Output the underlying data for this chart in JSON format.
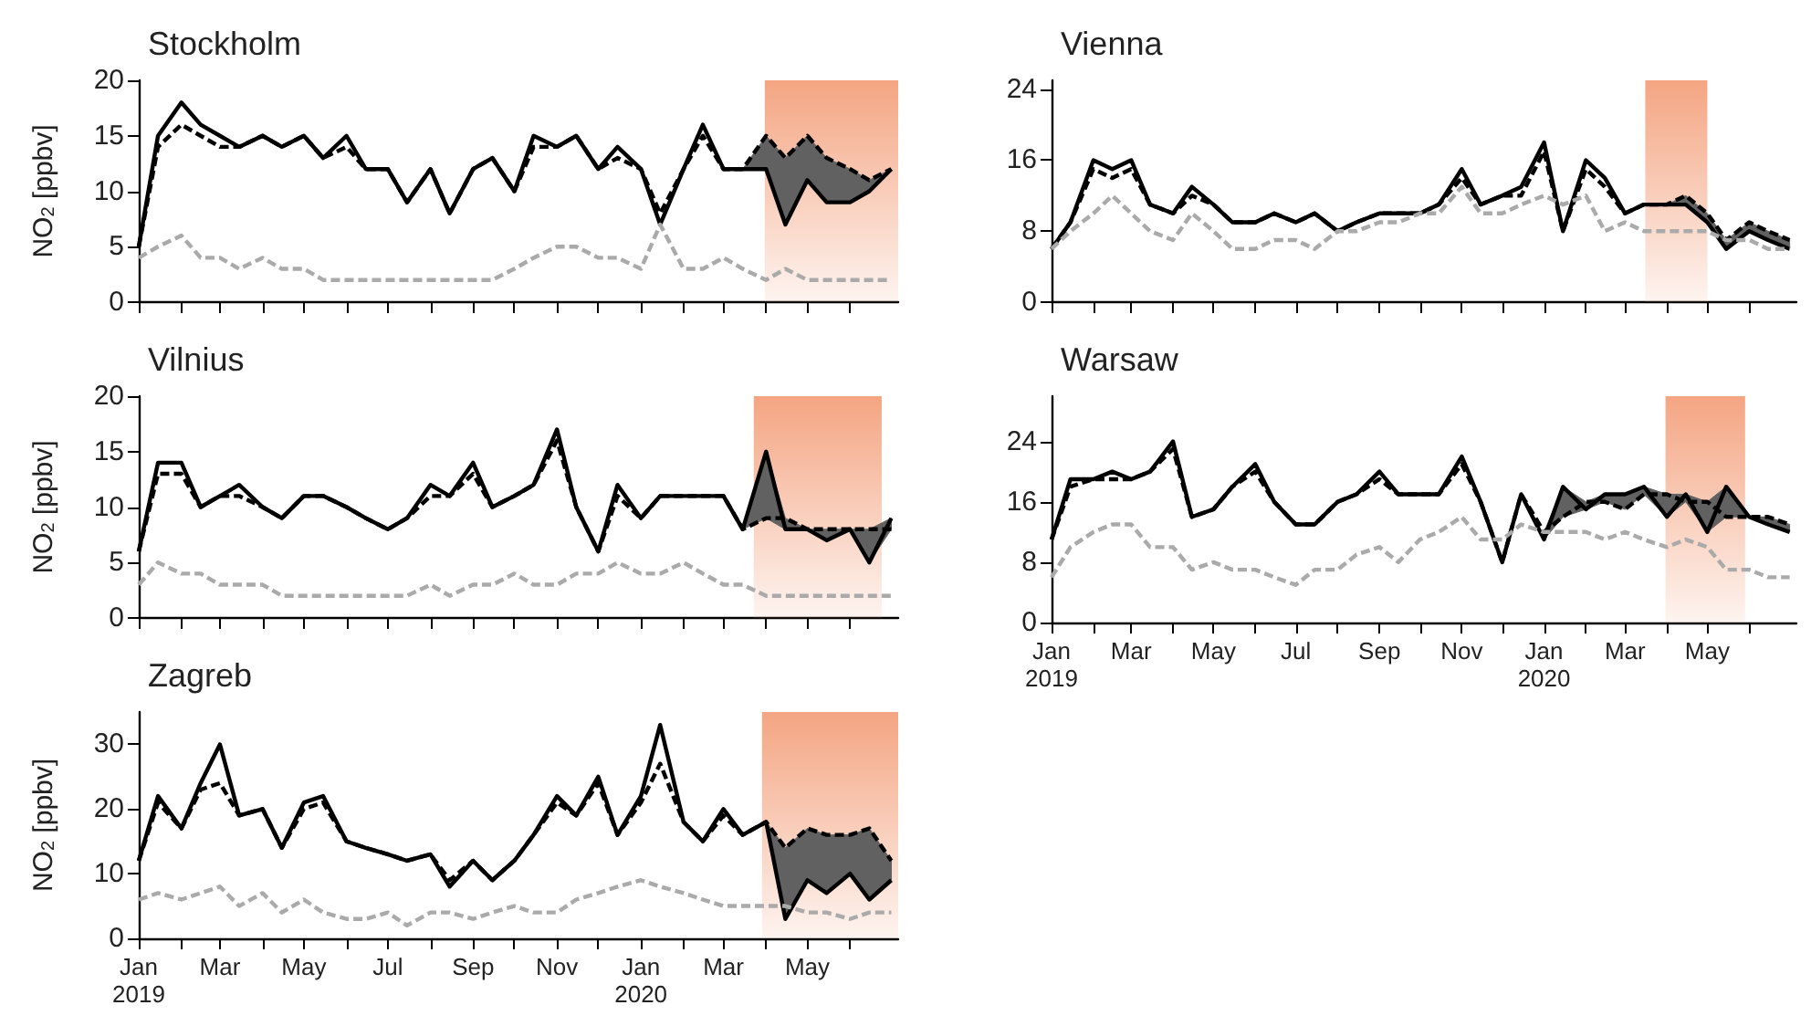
{
  "chart_data": [
    {
      "type": "line",
      "title": "Stockholm",
      "ylabel": "NO$_{2}$ [ppbv]",
      "ylim": [
        0,
        20
      ],
      "yticks": [
        0,
        5,
        10,
        15,
        20
      ],
      "tick_labels": "y",
      "x": [
        "2019-01-01",
        "2019-01-15",
        "2019-02-01",
        "2019-02-15",
        "2019-03-01",
        "2019-03-15",
        "2019-04-01",
        "2019-04-15",
        "2019-05-01",
        "2019-05-15",
        "2019-06-01",
        "2019-06-15",
        "2019-07-01",
        "2019-07-15",
        "2019-08-01",
        "2019-08-15",
        "2019-09-01",
        "2019-09-15",
        "2019-10-01",
        "2019-10-15",
        "2019-11-01",
        "2019-11-15",
        "2019-12-01",
        "2019-12-15",
        "2020-01-01",
        "2020-01-15",
        "2020-02-01",
        "2020-02-15",
        "2020-03-01",
        "2020-03-15",
        "2020-04-01",
        "2020-04-15",
        "2020-05-01",
        "2020-05-15",
        "2020-06-01",
        "2020-06-15",
        "2020-07-01"
      ],
      "xlim": [
        "2019-01-01",
        "2020-07-06"
      ],
      "xticks": [
        "2019-01-01",
        "2019-02-01",
        "2019-03-01",
        "2019-04-01",
        "2019-05-01",
        "2019-06-01",
        "2019-07-01",
        "2019-08-01",
        "2019-09-01",
        "2019-10-01",
        "2019-11-01",
        "2019-12-01",
        "2020-01-01",
        "2020-02-01",
        "2020-03-01",
        "2020-04-01",
        "2020-05-01",
        "2020-06-01"
      ],
      "bands": [
        {
          "axis": "x",
          "from": "2020-03-31",
          "to": "2020-07-06",
          "color": "#f4a582"
        }
      ],
      "series": [
        {
          "color": "#000000",
          "line_style": "dashed",
          "lower": [
            null,
            null,
            null,
            null,
            null,
            null,
            null,
            null,
            null,
            null,
            null,
            null,
            null,
            null,
            null,
            null,
            null,
            null,
            null,
            null,
            null,
            null,
            null,
            null,
            null,
            null,
            null,
            null,
            null,
            12,
            12,
            7,
            11,
            9,
            9,
            10,
            12
          ],
          "upper": [
            null,
            null,
            null,
            null,
            null,
            null,
            null,
            null,
            null,
            null,
            null,
            null,
            null,
            null,
            null,
            null,
            null,
            null,
            null,
            null,
            null,
            null,
            null,
            null,
            null,
            null,
            null,
            null,
            null,
            12,
            15,
            13,
            15,
            13,
            12,
            11,
            12
          ],
          "values": [
            5,
            14,
            16,
            15,
            14,
            14,
            15,
            14,
            15,
            13,
            14,
            12,
            12,
            9,
            12,
            8,
            12,
            13,
            10,
            14,
            14,
            15,
            12,
            13,
            12,
            8,
            12,
            15,
            12,
            12,
            15,
            13,
            15,
            13,
            12,
            11,
            12
          ]
        },
        {
          "color": "#000000",
          "line_style": "solid",
          "values": [
            5,
            15,
            18,
            16,
            15,
            14,
            15,
            14,
            15,
            13,
            15,
            12,
            12,
            9,
            12,
            8,
            12,
            13,
            10,
            15,
            14,
            15,
            12,
            14,
            12,
            7,
            12,
            16,
            12,
            12,
            12,
            7,
            11,
            9,
            9,
            10,
            12
          ]
        },
        {
          "color": "#aaaaaa",
          "line_style": "dashed",
          "values": [
            4,
            5,
            6,
            4,
            4,
            3,
            4,
            3,
            3,
            2,
            2,
            2,
            2,
            2,
            2,
            2,
            2,
            2,
            3,
            4,
            5,
            5,
            4,
            4,
            3,
            7,
            3,
            3,
            4,
            3,
            2,
            3,
            2,
            2,
            2,
            2,
            2
          ]
        }
      ]
    },
    {
      "type": "line",
      "title": "Vienna",
      "ylim": [
        0,
        25
      ],
      "yticks": [
        0,
        8,
        16,
        24
      ],
      "tick_labels": "y",
      "x": [
        "2019-01-01",
        "2019-01-15",
        "2019-02-01",
        "2019-02-15",
        "2019-03-01",
        "2019-03-15",
        "2019-04-01",
        "2019-04-15",
        "2019-05-01",
        "2019-05-15",
        "2019-06-01",
        "2019-06-15",
        "2019-07-01",
        "2019-07-15",
        "2019-08-01",
        "2019-08-15",
        "2019-09-01",
        "2019-09-15",
        "2019-10-01",
        "2019-10-15",
        "2019-11-01",
        "2019-11-15",
        "2019-12-01",
        "2019-12-15",
        "2020-01-01",
        "2020-01-15",
        "2020-02-01",
        "2020-02-15",
        "2020-03-01",
        "2020-03-15",
        "2020-04-01",
        "2020-04-15",
        "2020-05-01",
        "2020-05-15",
        "2020-06-01",
        "2020-06-15",
        "2020-07-01"
      ],
      "xlim": [
        "2019-01-01",
        "2020-07-06"
      ],
      "xticks": [
        "2019-01-01",
        "2019-02-01",
        "2019-03-01",
        "2019-04-01",
        "2019-05-01",
        "2019-06-01",
        "2019-07-01",
        "2019-08-01",
        "2019-09-01",
        "2019-10-01",
        "2019-11-01",
        "2019-12-01",
        "2020-01-01",
        "2020-02-01",
        "2020-03-01",
        "2020-04-01",
        "2020-05-01",
        "2020-06-01"
      ],
      "bands": [
        {
          "axis": "x",
          "from": "2020-03-16",
          "to": "2020-05-01",
          "color": "#f4a582"
        }
      ],
      "series": [
        {
          "color": "#000000",
          "line_style": "dashed",
          "lower": [
            null,
            null,
            null,
            null,
            null,
            null,
            null,
            null,
            null,
            null,
            null,
            null,
            null,
            null,
            null,
            null,
            null,
            null,
            null,
            null,
            null,
            null,
            null,
            null,
            null,
            null,
            null,
            null,
            null,
            11,
            11,
            11,
            9,
            6,
            8,
            7,
            6
          ],
          "upper": [
            null,
            null,
            null,
            null,
            null,
            null,
            null,
            null,
            null,
            null,
            null,
            null,
            null,
            null,
            null,
            null,
            null,
            null,
            null,
            null,
            null,
            null,
            null,
            null,
            null,
            null,
            null,
            null,
            null,
            11,
            11,
            12,
            10,
            7,
            9,
            8,
            7
          ],
          "values": [
            6,
            9,
            15,
            14,
            15,
            11,
            10,
            12,
            11,
            9,
            9,
            10,
            9,
            10,
            8,
            9,
            10,
            10,
            10,
            11,
            14,
            11,
            12,
            12,
            17,
            8,
            15,
            13,
            10,
            11,
            11,
            12,
            10,
            7,
            9,
            8,
            7
          ]
        },
        {
          "color": "#000000",
          "line_style": "solid",
          "values": [
            6,
            9,
            16,
            15,
            16,
            11,
            10,
            13,
            11,
            9,
            9,
            10,
            9,
            10,
            8,
            9,
            10,
            10,
            10,
            11,
            15,
            11,
            12,
            13,
            18,
            8,
            16,
            14,
            10,
            11,
            11,
            11,
            9,
            6,
            8,
            7,
            6
          ]
        },
        {
          "color": "#aaaaaa",
          "line_style": "dashed",
          "values": [
            6,
            8,
            10,
            12,
            10,
            8,
            7,
            10,
            8,
            6,
            6,
            7,
            7,
            6,
            8,
            8,
            9,
            9,
            10,
            10,
            13,
            10,
            10,
            11,
            12,
            11,
            12,
            8,
            9,
            8,
            8,
            8,
            8,
            7,
            7,
            6,
            6
          ]
        }
      ]
    },
    {
      "type": "line",
      "title": "Vilnius",
      "ylabel": "NO$_{2}$ [ppbv]",
      "ylim": [
        0,
        20
      ],
      "yticks": [
        0,
        5,
        10,
        15,
        20
      ],
      "tick_labels": "y",
      "x": [
        "2019-01-01",
        "2019-01-15",
        "2019-02-01",
        "2019-02-15",
        "2019-03-01",
        "2019-03-15",
        "2019-04-01",
        "2019-04-15",
        "2019-05-01",
        "2019-05-15",
        "2019-06-01",
        "2019-06-15",
        "2019-07-01",
        "2019-07-15",
        "2019-08-01",
        "2019-08-15",
        "2019-09-01",
        "2019-09-15",
        "2019-10-01",
        "2019-10-15",
        "2019-11-01",
        "2019-11-15",
        "2019-12-01",
        "2019-12-15",
        "2020-01-01",
        "2020-01-15",
        "2020-02-01",
        "2020-02-15",
        "2020-03-01",
        "2020-03-15",
        "2020-04-01",
        "2020-04-15",
        "2020-05-01",
        "2020-05-15",
        "2020-06-01",
        "2020-06-15",
        "2020-07-01"
      ],
      "xlim": [
        "2019-01-01",
        "2020-07-06"
      ],
      "xticks": [
        "2019-01-01",
        "2019-02-01",
        "2019-03-01",
        "2019-04-01",
        "2019-05-01",
        "2019-06-01",
        "2019-07-01",
        "2019-08-01",
        "2019-09-01",
        "2019-10-01",
        "2019-11-01",
        "2019-12-01",
        "2020-01-01",
        "2020-02-01",
        "2020-03-01",
        "2020-04-01",
        "2020-05-01",
        "2020-06-01"
      ],
      "bands": [
        {
          "axis": "x",
          "from": "2020-03-23",
          "to": "2020-06-24",
          "color": "#f4a582"
        }
      ],
      "series": [
        {
          "color": "#000000",
          "line_style": "dashed",
          "lower": [
            null,
            null,
            null,
            null,
            null,
            null,
            null,
            null,
            null,
            null,
            null,
            null,
            null,
            null,
            null,
            null,
            null,
            null,
            null,
            null,
            null,
            null,
            null,
            null,
            null,
            null,
            null,
            null,
            null,
            8,
            9,
            8,
            8,
            7,
            8,
            5,
            8
          ],
          "upper": [
            null,
            null,
            null,
            null,
            null,
            null,
            null,
            null,
            null,
            null,
            null,
            null,
            null,
            null,
            null,
            null,
            null,
            null,
            null,
            null,
            null,
            null,
            null,
            null,
            null,
            null,
            null,
            null,
            null,
            8,
            15,
            9,
            8,
            8,
            8,
            8,
            9
          ],
          "values": [
            6,
            13,
            13,
            10,
            11,
            11,
            10,
            9,
            11,
            11,
            10,
            9,
            8,
            9,
            11,
            11,
            13,
            10,
            11,
            12,
            16,
            10,
            6,
            11,
            9,
            11,
            11,
            11,
            11,
            8,
            9,
            9,
            8,
            8,
            8,
            8,
            8
          ]
        },
        {
          "color": "#000000",
          "line_style": "solid",
          "values": [
            6,
            14,
            14,
            10,
            11,
            12,
            10,
            9,
            11,
            11,
            10,
            9,
            8,
            9,
            12,
            11,
            14,
            10,
            11,
            12,
            17,
            10,
            6,
            12,
            9,
            11,
            11,
            11,
            11,
            8,
            15,
            8,
            8,
            7,
            8,
            5,
            9
          ]
        },
        {
          "color": "#aaaaaa",
          "line_style": "dashed",
          "values": [
            3,
            5,
            4,
            4,
            3,
            3,
            3,
            2,
            2,
            2,
            2,
            2,
            2,
            2,
            3,
            2,
            3,
            3,
            4,
            3,
            3,
            4,
            4,
            5,
            4,
            4,
            5,
            4,
            3,
            3,
            2,
            2,
            2,
            2,
            2,
            2,
            2
          ]
        }
      ]
    },
    {
      "type": "line",
      "title": "Warsaw",
      "ylim": [
        0,
        30
      ],
      "yticks": [
        0,
        8,
        16,
        24
      ],
      "x": [
        "2019-01-01",
        "2019-01-15",
        "2019-02-01",
        "2019-02-15",
        "2019-03-01",
        "2019-03-15",
        "2019-04-01",
        "2019-04-15",
        "2019-05-01",
        "2019-05-15",
        "2019-06-01",
        "2019-06-15",
        "2019-07-01",
        "2019-07-15",
        "2019-08-01",
        "2019-08-15",
        "2019-09-01",
        "2019-09-15",
        "2019-10-01",
        "2019-10-15",
        "2019-11-01",
        "2019-11-15",
        "2019-12-01",
        "2019-12-15",
        "2020-01-01",
        "2020-01-15",
        "2020-02-01",
        "2020-02-15",
        "2020-03-01",
        "2020-03-15",
        "2020-04-01",
        "2020-04-15",
        "2020-05-01",
        "2020-05-15",
        "2020-06-01",
        "2020-06-15",
        "2020-07-01"
      ],
      "xlim": [
        "2019-01-01",
        "2020-07-06"
      ],
      "xticks": [
        {
          "value": "2019-01-01",
          "label": "Jan\n2019"
        },
        {
          "value": "2019-02-01",
          "label": null
        },
        {
          "value": "2019-03-01",
          "label": "Mar"
        },
        {
          "value": "2019-04-01",
          "label": null
        },
        {
          "value": "2019-05-01",
          "label": "May"
        },
        {
          "value": "2019-06-01",
          "label": null
        },
        {
          "value": "2019-07-01",
          "label": "Jul"
        },
        {
          "value": "2019-08-01",
          "label": null
        },
        {
          "value": "2019-09-01",
          "label": "Sep"
        },
        {
          "value": "2019-10-01",
          "label": null
        },
        {
          "value": "2019-11-01",
          "label": "Nov"
        },
        {
          "value": "2019-12-01",
          "label": null
        },
        {
          "value": "2020-01-01",
          "label": "Jan\n2020"
        },
        {
          "value": "2020-02-01",
          "label": null
        },
        {
          "value": "2020-03-01",
          "label": "Mar"
        },
        {
          "value": "2020-04-01",
          "label": null
        },
        {
          "value": "2020-05-01",
          "label": "May"
        },
        {
          "value": "2020-06-01",
          "label": null
        }
      ],
      "bands": [
        {
          "axis": "x",
          "from": "2020-03-31",
          "to": "2020-05-29",
          "color": "#f4a582"
        }
      ],
      "series": [
        {
          "color": "#000000",
          "line_style": "dashed",
          "lower": [
            null,
            null,
            null,
            null,
            null,
            null,
            null,
            null,
            null,
            null,
            null,
            null,
            null,
            null,
            null,
            null,
            null,
            null,
            null,
            null,
            null,
            null,
            null,
            null,
            11,
            14,
            15,
            16,
            15,
            17,
            14,
            16,
            12,
            14,
            14,
            13,
            12
          ],
          "upper": [
            null,
            null,
            null,
            null,
            null,
            null,
            null,
            null,
            null,
            null,
            null,
            null,
            null,
            null,
            null,
            null,
            null,
            null,
            null,
            null,
            null,
            null,
            null,
            null,
            12,
            18,
            16,
            17,
            17,
            18,
            17,
            17,
            16,
            18,
            14,
            14,
            13
          ],
          "values": [
            11,
            18,
            19,
            19,
            19,
            20,
            23,
            14,
            15,
            18,
            20,
            16,
            13,
            13,
            16,
            17,
            19,
            17,
            17,
            17,
            21,
            16,
            8,
            17,
            12,
            14,
            16,
            16,
            15,
            17,
            17,
            16,
            16,
            14,
            14,
            14,
            13
          ]
        },
        {
          "color": "#000000",
          "line_style": "solid",
          "values": [
            11,
            19,
            19,
            20,
            19,
            20,
            24,
            14,
            15,
            18,
            21,
            16,
            13,
            13,
            16,
            17,
            20,
            17,
            17,
            17,
            22,
            16,
            8,
            17,
            11,
            18,
            15,
            17,
            17,
            18,
            14,
            17,
            12,
            18,
            14,
            13,
            12
          ]
        },
        {
          "color": "#aaaaaa",
          "line_style": "dashed",
          "values": [
            6,
            10,
            12,
            13,
            13,
            10,
            10,
            7,
            8,
            7,
            7,
            6,
            5,
            7,
            7,
            9,
            10,
            8,
            11,
            12,
            14,
            11,
            11,
            13,
            12,
            12,
            12,
            11,
            12,
            11,
            10,
            11,
            10,
            7,
            7,
            6,
            6
          ]
        }
      ]
    },
    {
      "type": "line",
      "title": "Zagreb",
      "ylabel": "NO$_{2}$ [ppbv]",
      "ylim": [
        0,
        35
      ],
      "yticks": [
        0,
        10,
        20,
        30
      ],
      "x": [
        "2019-01-01",
        "2019-01-15",
        "2019-02-01",
        "2019-02-15",
        "2019-03-01",
        "2019-03-15",
        "2019-04-01",
        "2019-04-15",
        "2019-05-01",
        "2019-05-15",
        "2019-06-01",
        "2019-06-15",
        "2019-07-01",
        "2019-07-15",
        "2019-08-01",
        "2019-08-15",
        "2019-09-01",
        "2019-09-15",
        "2019-10-01",
        "2019-10-15",
        "2019-11-01",
        "2019-11-15",
        "2019-12-01",
        "2019-12-15",
        "2020-01-01",
        "2020-01-15",
        "2020-02-01",
        "2020-02-15",
        "2020-03-01",
        "2020-03-15",
        "2020-04-01",
        "2020-04-15",
        "2020-05-01",
        "2020-05-15",
        "2020-06-01",
        "2020-06-15",
        "2020-07-01"
      ],
      "xlim": [
        "2019-01-01",
        "2020-07-06"
      ],
      "xticks": [
        {
          "value": "2019-01-01",
          "label": "Jan\n2019"
        },
        {
          "value": "2019-02-01",
          "label": null
        },
        {
          "value": "2019-03-01",
          "label": "Mar"
        },
        {
          "value": "2019-04-01",
          "label": null
        },
        {
          "value": "2019-05-01",
          "label": "May"
        },
        {
          "value": "2019-06-01",
          "label": null
        },
        {
          "value": "2019-07-01",
          "label": "Jul"
        },
        {
          "value": "2019-08-01",
          "label": null
        },
        {
          "value": "2019-09-01",
          "label": "Sep"
        },
        {
          "value": "2019-10-01",
          "label": null
        },
        {
          "value": "2019-11-01",
          "label": "Nov"
        },
        {
          "value": "2019-12-01",
          "label": null
        },
        {
          "value": "2020-01-01",
          "label": "Jan\n2020"
        },
        {
          "value": "2020-02-01",
          "label": null
        },
        {
          "value": "2020-03-01",
          "label": "Mar"
        },
        {
          "value": "2020-04-01",
          "label": null
        },
        {
          "value": "2020-05-01",
          "label": "May"
        },
        {
          "value": "2020-06-01",
          "label": null
        }
      ],
      "bands": [
        {
          "axis": "x",
          "from": "2020-03-29",
          "to": "2020-07-06",
          "color": "#f4a582"
        }
      ],
      "series": [
        {
          "color": "#000000",
          "line_style": "dashed",
          "lower": [
            null,
            null,
            null,
            null,
            null,
            null,
            null,
            null,
            null,
            null,
            null,
            null,
            null,
            null,
            null,
            null,
            null,
            null,
            null,
            null,
            null,
            null,
            null,
            null,
            null,
            null,
            null,
            null,
            null,
            16,
            18,
            3,
            9,
            7,
            10,
            6,
            9
          ],
          "upper": [
            null,
            null,
            null,
            null,
            null,
            null,
            null,
            null,
            null,
            null,
            null,
            null,
            null,
            null,
            null,
            null,
            null,
            null,
            null,
            null,
            null,
            null,
            null,
            null,
            null,
            null,
            null,
            null,
            null,
            16,
            18,
            14,
            17,
            16,
            16,
            17,
            12
          ],
          "values": [
            12,
            21,
            17,
            23,
            24,
            19,
            20,
            14,
            20,
            21,
            15,
            14,
            13,
            12,
            13,
            9,
            12,
            9,
            12,
            16,
            21,
            19,
            24,
            16,
            21,
            27,
            18,
            15,
            19,
            16,
            18,
            14,
            17,
            16,
            16,
            17,
            12
          ]
        },
        {
          "color": "#000000",
          "line_style": "solid",
          "values": [
            12,
            22,
            17,
            24,
            30,
            19,
            20,
            14,
            21,
            22,
            15,
            14,
            13,
            12,
            13,
            8,
            12,
            9,
            12,
            16,
            22,
            19,
            25,
            16,
            22,
            33,
            18,
            15,
            20,
            16,
            18,
            3,
            9,
            7,
            10,
            6,
            9
          ]
        },
        {
          "color": "#aaaaaa",
          "line_style": "dashed",
          "values": [
            6,
            7,
            6,
            7,
            8,
            5,
            7,
            4,
            6,
            4,
            3,
            3,
            4,
            2,
            4,
            4,
            3,
            4,
            5,
            4,
            4,
            6,
            7,
            8,
            9,
            8,
            7,
            6,
            5,
            5,
            5,
            5,
            4,
            4,
            3,
            4,
            4
          ]
        }
      ]
    }
  ]
}
